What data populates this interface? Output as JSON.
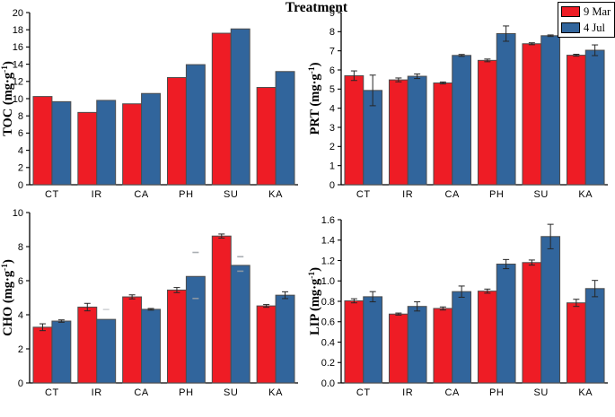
{
  "figure": {
    "xlabel": "Treatment",
    "background": "#ffffff",
    "colors": {
      "mar_red": "#ee1c25",
      "jul_blue": "#31659c",
      "bar_border": "#4d4d4d",
      "error_bar": "#262626",
      "axis": "#000000",
      "stray_mark": "#9aa0a6"
    },
    "legend": {
      "position": "top-right",
      "entries": [
        {
          "label": "9 Mar",
          "color": "#ee1c25"
        },
        {
          "label": "4 Jul",
          "color": "#31659c"
        }
      ]
    }
  },
  "chart_data": [
    {
      "type": "bar",
      "panel": "top-left",
      "ylabel": "TOC (mg·g⁻¹)",
      "ylim": [
        0,
        20
      ],
      "ytick_step": 2,
      "ytick_decimals": 0,
      "grid": false,
      "categories": [
        "CT",
        "IR",
        "CA",
        "PH",
        "SU",
        "KA"
      ],
      "series": [
        {
          "name": "9 Mar",
          "color": "#ee1c25",
          "values": [
            10.25,
            8.4,
            9.4,
            12.45,
            17.6,
            11.3
          ],
          "errors": [
            0,
            0,
            0,
            0,
            0,
            0
          ]
        },
        {
          "name": "4 Jul",
          "color": "#31659c",
          "values": [
            9.65,
            9.8,
            10.6,
            13.95,
            18.1,
            13.15
          ],
          "errors": [
            0,
            0,
            0,
            0,
            0,
            0
          ]
        }
      ],
      "stray_marks": []
    },
    {
      "type": "bar",
      "panel": "top-right",
      "ylabel": "PRT (mg·g⁻¹)",
      "ylim": [
        0,
        9
      ],
      "ytick_step": 1,
      "ytick_decimals": 0,
      "grid": false,
      "categories": [
        "CT",
        "IR",
        "CA",
        "PH",
        "SU",
        "KA"
      ],
      "series": [
        {
          "name": "9 Mar",
          "color": "#ee1c25",
          "values": [
            5.7,
            5.48,
            5.32,
            6.5,
            7.37,
            6.77
          ],
          "errors": [
            0.25,
            0.1,
            0.05,
            0.07,
            0.05,
            0.05
          ]
        },
        {
          "name": "4 Jul",
          "color": "#31659c",
          "values": [
            4.93,
            5.67,
            6.76,
            7.9,
            7.79,
            7.03
          ],
          "errors": [
            0.8,
            0.12,
            0.05,
            0.4,
            0.04,
            0.28
          ]
        }
      ],
      "stray_marks": []
    },
    {
      "type": "bar",
      "panel": "bottom-left",
      "ylabel": "CHO (mg·g⁻¹)",
      "ylim": [
        0,
        10
      ],
      "ytick_step": 2,
      "ytick_decimals": 0,
      "grid": false,
      "categories": [
        "CT",
        "IR",
        "CA",
        "PH",
        "SU",
        "KA"
      ],
      "series": [
        {
          "name": "9 Mar",
          "color": "#ee1c25",
          "values": [
            3.27,
            4.45,
            5.05,
            5.45,
            8.62,
            4.52
          ],
          "errors": [
            0.2,
            0.22,
            0.12,
            0.15,
            0.12,
            0.08
          ]
        },
        {
          "name": "4 Jul",
          "color": "#31659c",
          "values": [
            3.63,
            3.73,
            4.32,
            6.25,
            6.9,
            5.15
          ],
          "errors": [
            0.07,
            0,
            0.05,
            0,
            0,
            0.2
          ]
        }
      ],
      "stray_marks": [
        {
          "category": "IR",
          "series": 1,
          "y": 4.35,
          "faint": true
        },
        {
          "category": "PH",
          "series": 1,
          "y": 7.7,
          "faint": false
        },
        {
          "category": "PH",
          "series": 1,
          "y": 5.0,
          "faint": false
        },
        {
          "category": "SU",
          "series": 1,
          "y": 7.45,
          "faint": false
        },
        {
          "category": "SU",
          "series": 1,
          "y": 6.6,
          "faint": false
        }
      ]
    },
    {
      "type": "bar",
      "panel": "bottom-right",
      "ylabel": "LIP (mg·g⁻¹)",
      "ylim": [
        0,
        1.6
      ],
      "ytick_step": 0.2,
      "ytick_decimals": 1,
      "grid": false,
      "categories": [
        "CT",
        "IR",
        "CA",
        "PH",
        "SU",
        "KA"
      ],
      "series": [
        {
          "name": "9 Mar",
          "color": "#ee1c25",
          "values": [
            0.805,
            0.675,
            0.73,
            0.9,
            1.18,
            0.785
          ],
          "errors": [
            0.02,
            0.01,
            0.015,
            0.02,
            0.025,
            0.035
          ]
        },
        {
          "name": "4 Jul",
          "color": "#31659c",
          "values": [
            0.845,
            0.75,
            0.895,
            1.165,
            1.435,
            0.925
          ],
          "errors": [
            0.05,
            0.045,
            0.055,
            0.045,
            0.12,
            0.08
          ]
        }
      ],
      "stray_marks": []
    }
  ]
}
